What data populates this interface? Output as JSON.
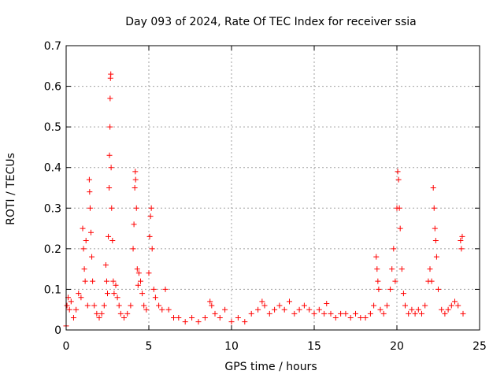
{
  "chart_data": {
    "type": "scatter",
    "title": "Day 093 of 2024, Rate Of TEC Index for receiver ssia",
    "xlabel": "GPS time / hours",
    "ylabel": "ROTI / TECUs",
    "xlim": [
      0,
      25
    ],
    "ylim": [
      0,
      0.7
    ],
    "x_ticks": [
      0,
      5,
      10,
      15,
      20,
      25
    ],
    "x_tick_labels": [
      "0",
      "5",
      "10",
      "15",
      "20",
      "25"
    ],
    "y_ticks": [
      0,
      0.1,
      0.2,
      0.3,
      0.4,
      0.5,
      0.6,
      0.7
    ],
    "y_tick_labels": [
      "0",
      "0.1",
      "0.2",
      "0.3",
      "0.4",
      "0.5",
      "0.6",
      "0.7"
    ],
    "grid": true,
    "marker": "+",
    "color": "#ff0000",
    "series": [
      {
        "name": "ROTI",
        "points": [
          [
            0.0,
            0.01
          ],
          [
            0.05,
            0.06
          ],
          [
            0.12,
            0.08
          ],
          [
            0.2,
            0.05
          ],
          [
            0.3,
            0.07
          ],
          [
            0.45,
            0.03
          ],
          [
            0.6,
            0.05
          ],
          [
            0.75,
            0.09
          ],
          [
            0.9,
            0.08
          ],
          [
            1.0,
            0.25
          ],
          [
            1.05,
            0.2
          ],
          [
            1.1,
            0.15
          ],
          [
            1.15,
            0.12
          ],
          [
            1.2,
            0.22
          ],
          [
            1.3,
            0.06
          ],
          [
            1.4,
            0.37
          ],
          [
            1.42,
            0.34
          ],
          [
            1.45,
            0.3
          ],
          [
            1.5,
            0.24
          ],
          [
            1.55,
            0.18
          ],
          [
            1.6,
            0.12
          ],
          [
            1.7,
            0.06
          ],
          [
            1.85,
            0.04
          ],
          [
            2.0,
            0.03
          ],
          [
            2.15,
            0.04
          ],
          [
            2.3,
            0.06
          ],
          [
            2.4,
            0.16
          ],
          [
            2.45,
            0.12
          ],
          [
            2.5,
            0.09
          ],
          [
            2.55,
            0.23
          ],
          [
            2.6,
            0.35
          ],
          [
            2.62,
            0.43
          ],
          [
            2.65,
            0.5
          ],
          [
            2.66,
            0.57
          ],
          [
            2.68,
            0.62
          ],
          [
            2.7,
            0.63
          ],
          [
            2.72,
            0.4
          ],
          [
            2.75,
            0.3
          ],
          [
            2.8,
            0.22
          ],
          [
            2.85,
            0.12
          ],
          [
            2.9,
            0.09
          ],
          [
            3.0,
            0.11
          ],
          [
            3.1,
            0.08
          ],
          [
            3.2,
            0.06
          ],
          [
            3.3,
            0.04
          ],
          [
            3.5,
            0.03
          ],
          [
            3.7,
            0.04
          ],
          [
            3.9,
            0.06
          ],
          [
            4.05,
            0.2
          ],
          [
            4.1,
            0.26
          ],
          [
            4.15,
            0.35
          ],
          [
            4.18,
            0.39
          ],
          [
            4.2,
            0.37
          ],
          [
            4.25,
            0.3
          ],
          [
            4.3,
            0.15
          ],
          [
            4.35,
            0.11
          ],
          [
            4.4,
            0.14
          ],
          [
            4.5,
            0.12
          ],
          [
            4.6,
            0.09
          ],
          [
            4.7,
            0.06
          ],
          [
            4.85,
            0.05
          ],
          [
            5.0,
            0.14
          ],
          [
            5.05,
            0.23
          ],
          [
            5.1,
            0.28
          ],
          [
            5.15,
            0.3
          ],
          [
            5.2,
            0.2
          ],
          [
            5.3,
            0.1
          ],
          [
            5.4,
            0.08
          ],
          [
            5.6,
            0.06
          ],
          [
            5.8,
            0.05
          ],
          [
            6.0,
            0.1
          ],
          [
            6.2,
            0.05
          ],
          [
            6.5,
            0.03
          ],
          [
            6.8,
            0.03
          ],
          [
            7.2,
            0.02
          ],
          [
            7.6,
            0.03
          ],
          [
            8.0,
            0.02
          ],
          [
            8.4,
            0.03
          ],
          [
            8.7,
            0.07
          ],
          [
            8.8,
            0.06
          ],
          [
            9.0,
            0.04
          ],
          [
            9.3,
            0.03
          ],
          [
            9.6,
            0.05
          ],
          [
            10.0,
            0.02
          ],
          [
            10.4,
            0.03
          ],
          [
            10.8,
            0.02
          ],
          [
            11.2,
            0.04
          ],
          [
            11.6,
            0.05
          ],
          [
            11.85,
            0.07
          ],
          [
            12.0,
            0.06
          ],
          [
            12.3,
            0.04
          ],
          [
            12.6,
            0.05
          ],
          [
            12.9,
            0.06
          ],
          [
            13.2,
            0.05
          ],
          [
            13.5,
            0.07
          ],
          [
            13.8,
            0.04
          ],
          [
            14.1,
            0.05
          ],
          [
            14.4,
            0.06
          ],
          [
            14.7,
            0.05
          ],
          [
            15.0,
            0.04
          ],
          [
            15.3,
            0.05
          ],
          [
            15.6,
            0.04
          ],
          [
            15.75,
            0.065
          ],
          [
            16.0,
            0.04
          ],
          [
            16.3,
            0.03
          ],
          [
            16.6,
            0.04
          ],
          [
            16.9,
            0.04
          ],
          [
            17.2,
            0.03
          ],
          [
            17.5,
            0.04
          ],
          [
            17.8,
            0.03
          ],
          [
            18.1,
            0.03
          ],
          [
            18.4,
            0.04
          ],
          [
            18.6,
            0.06
          ],
          [
            18.75,
            0.18
          ],
          [
            18.8,
            0.15
          ],
          [
            18.85,
            0.12
          ],
          [
            18.9,
            0.1
          ],
          [
            19.0,
            0.05
          ],
          [
            19.2,
            0.04
          ],
          [
            19.4,
            0.06
          ],
          [
            19.6,
            0.1
          ],
          [
            19.7,
            0.15
          ],
          [
            19.8,
            0.2
          ],
          [
            19.9,
            0.12
          ],
          [
            20.0,
            0.3
          ],
          [
            20.05,
            0.39
          ],
          [
            20.1,
            0.37
          ],
          [
            20.15,
            0.3
          ],
          [
            20.2,
            0.25
          ],
          [
            20.3,
            0.15
          ],
          [
            20.4,
            0.09
          ],
          [
            20.5,
            0.06
          ],
          [
            20.7,
            0.04
          ],
          [
            20.9,
            0.05
          ],
          [
            21.1,
            0.04
          ],
          [
            21.3,
            0.05
          ],
          [
            21.5,
            0.04
          ],
          [
            21.7,
            0.06
          ],
          [
            21.9,
            0.12
          ],
          [
            22.0,
            0.15
          ],
          [
            22.1,
            0.12
          ],
          [
            22.2,
            0.35
          ],
          [
            22.25,
            0.3
          ],
          [
            22.3,
            0.25
          ],
          [
            22.35,
            0.22
          ],
          [
            22.4,
            0.18
          ],
          [
            22.5,
            0.1
          ],
          [
            22.7,
            0.05
          ],
          [
            22.9,
            0.04
          ],
          [
            23.1,
            0.05
          ],
          [
            23.3,
            0.06
          ],
          [
            23.5,
            0.07
          ],
          [
            23.7,
            0.06
          ],
          [
            23.85,
            0.22
          ],
          [
            23.9,
            0.2
          ],
          [
            23.95,
            0.23
          ],
          [
            24.0,
            0.04
          ]
        ]
      }
    ]
  }
}
